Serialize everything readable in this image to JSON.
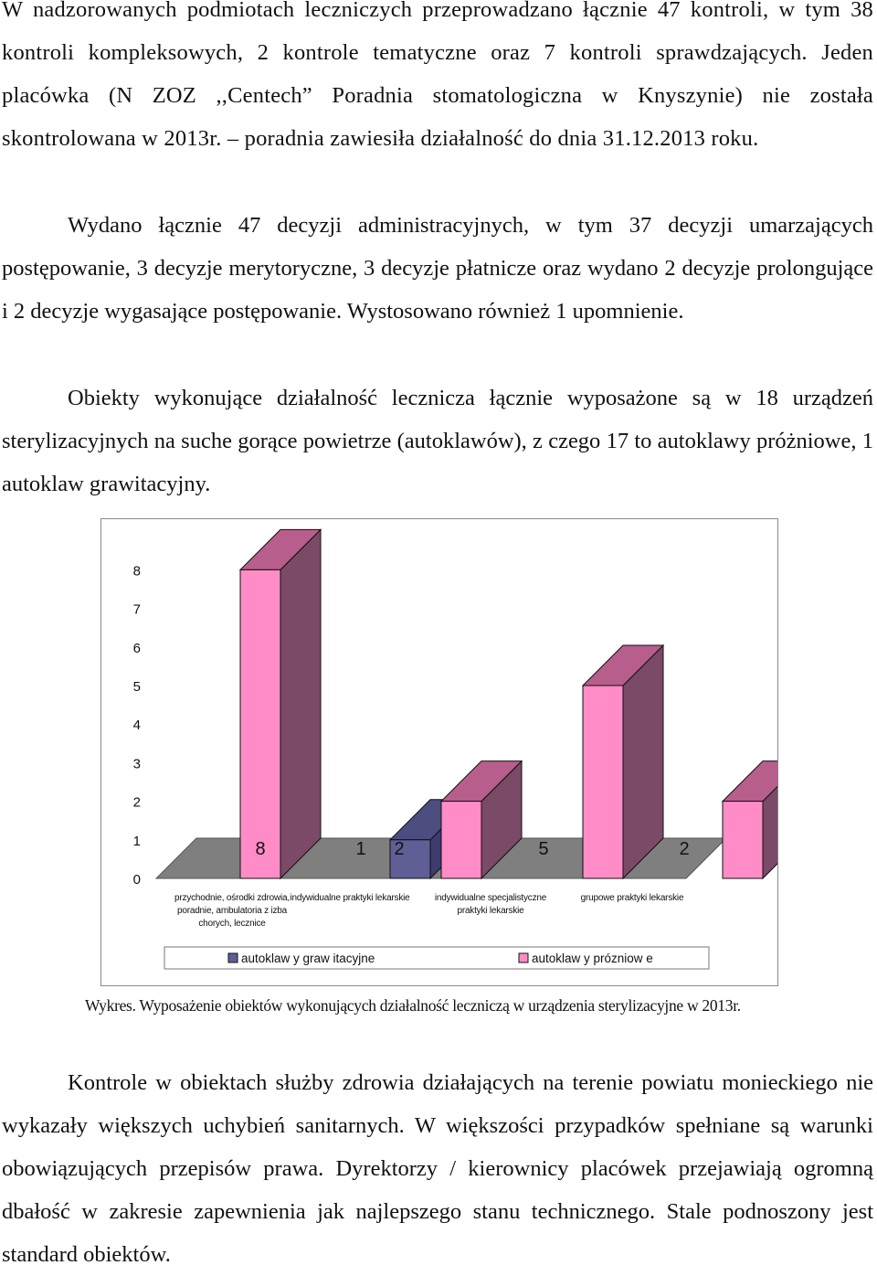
{
  "paragraphs": [
    "W nadzorowanych podmiotach leczniczych przeprowadzano łącznie 47 kontroli, w tym 38 kontroli kompleksowych, 2 kontrole tematyczne oraz 7 kontroli sprawdzających. Jeden placówka (N ZOZ ,,Centech” Poradnia stomatologiczna w Knyszynie) nie została skontrolowana w 2013r. – poradnia zawiesiła działalność do dnia 31.12.2013 roku.",
    "Wydano łącznie 47 decyzji administracyjnych, w tym 37 decyzji umarzających postępowanie, 3 decyzje merytoryczne, 3 decyzje płatnicze oraz wydano 2 decyzje prolongujące i 2 decyzje wygasające postępowanie. Wystosowano również 1 upomnienie.",
    "Obiekty wykonujące działalność lecznicza łącznie wyposażone są w 18 urządzeń sterylizacyjnych na suche gorące powietrze (autoklawów), z czego 17 to autoklawy próżniowe, 1 autoklaw grawitacyjny.",
    "Kontrole w obiektach służby zdrowia działających na terenie powiatu monieckiego nie wykazały większych uchybień sanitarnych. W większości przypadków spełniane są warunki obowiązujących przepisów prawa. Dyrektorzy / kierownicy placówek przejawiają ogromną dbałość w zakresie zapewnienia jak najlepszego stanu technicznego. Stale podnoszony jest standard obiektów."
  ],
  "caption": "Wykres. Wyposażenie obiektów wykonujących działalność leczniczą w urządzenia sterylizacyjne w 2013r.",
  "chart_data": {
    "type": "bar",
    "categories": [
      "przychodnie, ośrodki zdrowia, poradnie, ambulatoria z izba chorych, lecznice",
      "indywidualne praktyki lekarskie",
      "indywidualne specjalistyczne praktyki lekarskie",
      "grupowe praktyki lekarskie"
    ],
    "category_lines": [
      [
        "przychodnie, ośrodki zdrowia,",
        "poradnie, ambulatoria z izba",
        "chorych, lecznice"
      ],
      [
        "indywidualne praktyki lekarskie"
      ],
      [
        "indywidualne specjalistyczne",
        "praktyki lekarskie"
      ],
      [
        "grupowe praktyki lekarskie"
      ]
    ],
    "series": [
      {
        "name": "autoklaw y graw itacyjne",
        "values": [
          0,
          1,
          0,
          0
        ],
        "color": "#5f5f96",
        "side_color": "#3c3c6e",
        "top_color": "#4d4d80"
      },
      {
        "name": "autoklaw y prózniow e",
        "values": [
          8,
          2,
          5,
          2
        ],
        "color": "#ff8cc6",
        "side_color": "#7a4a66",
        "top_color": "#b75e8c"
      }
    ],
    "data_labels": [
      "8",
      "1",
      "2",
      "5",
      "2"
    ],
    "yticks": [
      "0",
      "1",
      "2",
      "3",
      "4",
      "5",
      "6",
      "7",
      "8"
    ],
    "ylim": [
      0,
      8
    ],
    "floor_color": "#7f7f7f",
    "legend_position": "bottom",
    "grid": false,
    "title": "",
    "xlabel": "",
    "ylabel": ""
  }
}
